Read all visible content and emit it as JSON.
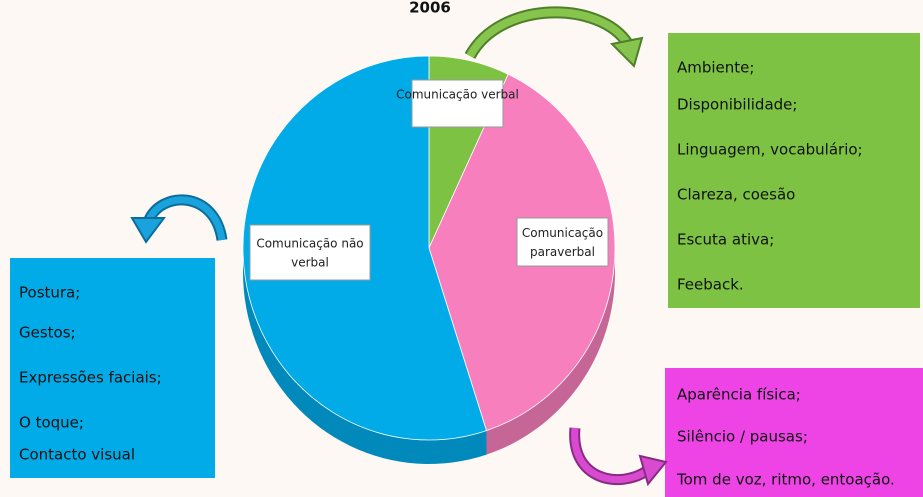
{
  "chart_data": {
    "type": "pie",
    "title": "2006",
    "categories": [
      "Comunicação verbal",
      "Comunicação paraverbal",
      "Comunicação não verbal"
    ],
    "values": [
      7,
      38,
      55
    ],
    "colors": [
      "#7dc243",
      "#f77fbd",
      "#00abe8"
    ]
  },
  "boxes": [
    {
      "items": [
        "Ambiente;",
        "Disponibilidade;",
        "Linguagem, vocabulário;",
        "Clareza, coesão",
        "Escuta ativa;",
        "Feeback."
      ]
    },
    {
      "items": [
        "Aparência física;",
        "Silêncio / pausas;",
        "Tom de voz, ritmo, entoação."
      ]
    },
    {
      "items": [
        "Postura;",
        "Gestos;",
        "Expressões faciais;",
        "O toque;",
        "Contacto visual"
      ]
    }
  ]
}
